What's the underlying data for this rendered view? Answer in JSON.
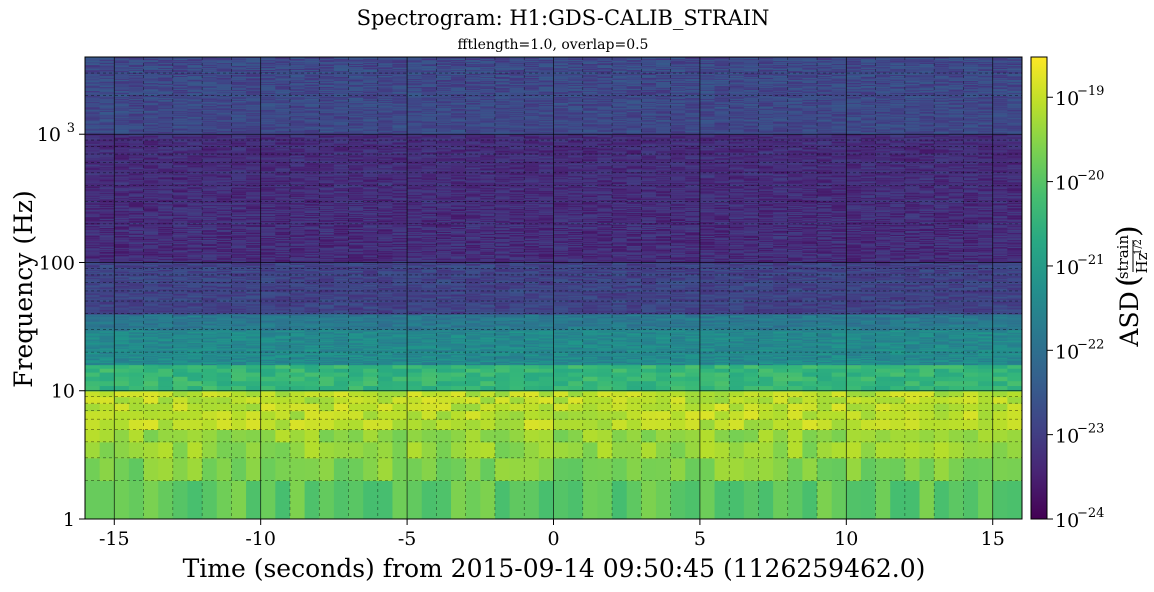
{
  "chart_data": {
    "type": "heatmap",
    "title": "Spectrogram: H1:GDS-CALIB_STRAIN",
    "subtitle": "fftlength=1.0, overlap=0.5",
    "xlabel": "Time (seconds) from 2015-09-14 09:50:45 (1126259462.0)",
    "ylabel": "Frequency (Hz)",
    "colorbar_label": "ASD",
    "colorbar_unit_numerator": "strain",
    "colorbar_unit_denominator": "Hz",
    "colorbar_unit_exponent": "1/2",
    "xlim": [
      -16,
      16
    ],
    "ylim": [
      1,
      4000
    ],
    "yscale": "log",
    "color_scale": "log",
    "color_range": [
      1e-24,
      3e-19
    ],
    "colormap": "viridis",
    "grid": "on",
    "x_ticks": [
      {
        "value": -15,
        "label": "-15"
      },
      {
        "value": -10,
        "label": "-10"
      },
      {
        "value": -5,
        "label": "-5"
      },
      {
        "value": 0,
        "label": "0"
      },
      {
        "value": 5,
        "label": "5"
      },
      {
        "value": 10,
        "label": "10"
      },
      {
        "value": 15,
        "label": "15"
      }
    ],
    "y_ticks": [
      {
        "value": 1,
        "label": "1"
      },
      {
        "value": 10,
        "label": "10"
      },
      {
        "value": 100,
        "label": "100"
      },
      {
        "value": 1000,
        "label": "10",
        "exponent": "3"
      }
    ],
    "colorbar_ticks": [
      {
        "value": 1e-24,
        "base": "10",
        "exponent": "−24"
      },
      {
        "value": 1e-23,
        "base": "10",
        "exponent": "−23"
      },
      {
        "value": 1e-22,
        "base": "10",
        "exponent": "−22"
      },
      {
        "value": 1e-21,
        "base": "10",
        "exponent": "−21"
      },
      {
        "value": 1e-20,
        "base": "10",
        "exponent": "−20"
      },
      {
        "value": 1e-19,
        "base": "10",
        "exponent": "−19"
      }
    ],
    "asd_profile_by_frequency_band": [
      {
        "freq_range": [
          1,
          2
        ],
        "log10_asd": -19.9
      },
      {
        "freq_range": [
          2,
          3
        ],
        "log10_asd": -19.6
      },
      {
        "freq_range": [
          3,
          5
        ],
        "log10_asd": -19.4
      },
      {
        "freq_range": [
          5,
          10
        ],
        "log10_asd": -19.1
      },
      {
        "freq_range": [
          10,
          16
        ],
        "log10_asd": -20.4
      },
      {
        "freq_range": [
          16,
          30
        ],
        "log10_asd": -21.4
      },
      {
        "freq_range": [
          30,
          40
        ],
        "log10_asd": -21.8
      },
      {
        "freq_range": [
          40,
          100
        ],
        "log10_asd": -22.9
      },
      {
        "freq_range": [
          100,
          1000
        ],
        "log10_asd": -23.3
      },
      {
        "freq_range": [
          1000,
          4000
        ],
        "log10_asd": -22.8
      }
    ]
  }
}
